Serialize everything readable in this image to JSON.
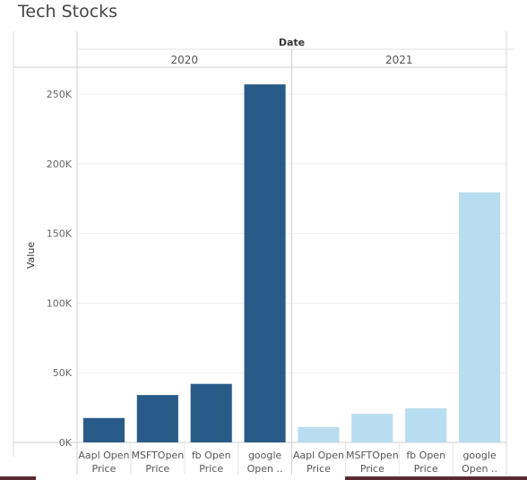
{
  "title": "Tech Stocks",
  "chart_data": {
    "type": "bar",
    "column_header": "Date",
    "ylabel": "Value",
    "ylim": [
      0,
      270000
    ],
    "yticks": [
      0,
      50000,
      100000,
      150000,
      200000,
      250000
    ],
    "ytick_labels": [
      "0K",
      "50K",
      "100K",
      "150K",
      "200K",
      "250K"
    ],
    "groups": [
      {
        "name": "2020",
        "color": "#295b88",
        "categories": [
          "Aapl Open Price",
          "MSFTOpen Price",
          "fb Open Price",
          "google Open .."
        ],
        "category_lines": [
          [
            "Aapl Open",
            "Price"
          ],
          [
            "MSFTOpen",
            "Price"
          ],
          [
            "fb Open",
            "Price"
          ],
          [
            "google",
            "Open .."
          ]
        ],
        "values": [
          17500,
          34000,
          42000,
          257000
        ]
      },
      {
        "name": "2021",
        "color": "#b9ddf0",
        "categories": [
          "Aapl Open Price",
          "MSFTOpen Price",
          "fb Open Price",
          "google Open .."
        ],
        "category_lines": [
          [
            "Aapl Open",
            "Price"
          ],
          [
            "MSFTOpen",
            "Price"
          ],
          [
            "fb Open",
            "Price"
          ],
          [
            "google",
            "Open .."
          ]
        ],
        "values": [
          11000,
          20500,
          24500,
          179500
        ]
      }
    ]
  }
}
